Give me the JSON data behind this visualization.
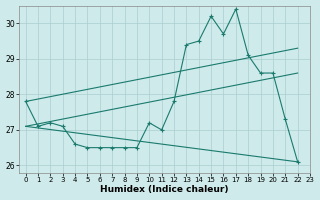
{
  "xlabel": "Humidex (Indice chaleur)",
  "background_color": "#ceeaea",
  "line_color": "#1a7a6e",
  "xlim": [
    -0.5,
    23
  ],
  "ylim": [
    25.8,
    30.5
  ],
  "yticks": [
    26,
    27,
    28,
    29,
    30
  ],
  "xticks": [
    0,
    1,
    2,
    3,
    4,
    5,
    6,
    7,
    8,
    9,
    10,
    11,
    12,
    13,
    14,
    15,
    16,
    17,
    18,
    19,
    20,
    21,
    22,
    23
  ],
  "series1_x": [
    0,
    1,
    2,
    3,
    4,
    5,
    6,
    7,
    8,
    9,
    10,
    11,
    12,
    13,
    14,
    15,
    16,
    17,
    18,
    19,
    20,
    21,
    22
  ],
  "series1_y": [
    27.8,
    27.1,
    27.2,
    27.1,
    26.6,
    26.5,
    26.5,
    26.5,
    26.5,
    26.5,
    27.2,
    27.0,
    27.8,
    29.4,
    29.5,
    30.2,
    29.7,
    30.4,
    29.1,
    28.6,
    28.6,
    27.3,
    26.1
  ],
  "line2_x": [
    0,
    22
  ],
  "line2_y": [
    27.8,
    29.3
  ],
  "line3_x": [
    0,
    22
  ],
  "line3_y": [
    27.1,
    28.6
  ],
  "line4_x": [
    0,
    22
  ],
  "line4_y": [
    27.1,
    26.1
  ],
  "grid_color": "#aacece"
}
